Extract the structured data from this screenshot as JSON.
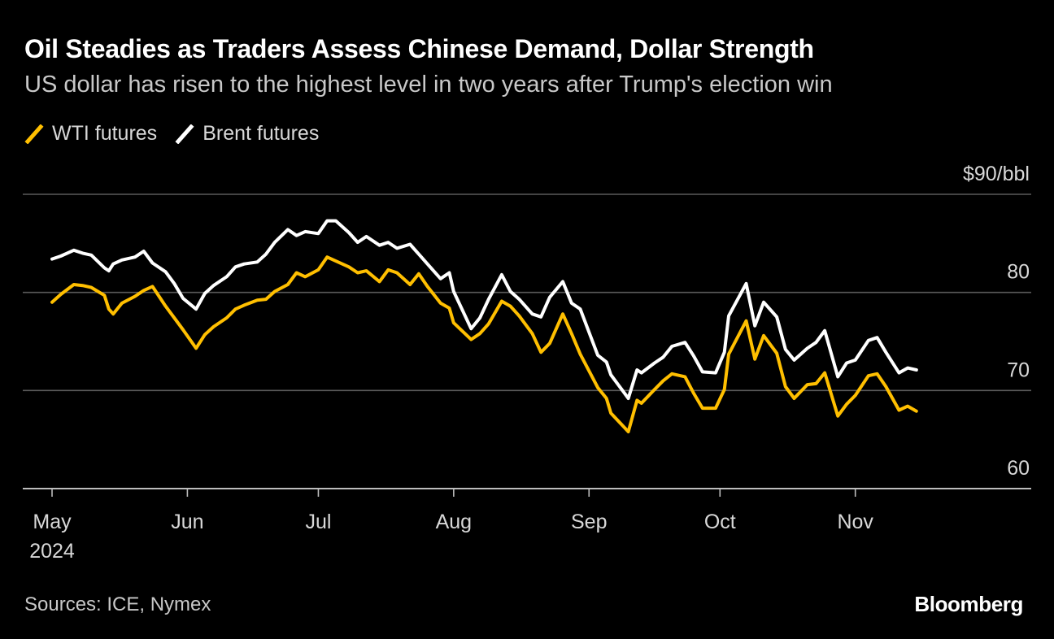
{
  "header": {
    "title": "Oil Steadies as Traders Assess Chinese Demand, Dollar Strength",
    "subtitle": "US dollar has risen to the highest level in two years after Trump's election win"
  },
  "footer": {
    "source": "Sources: ICE, Nymex",
    "brand": "Bloomberg"
  },
  "colors": {
    "background": "#000000",
    "wti": "#ffbf00",
    "brent": "#ffffff",
    "grid": "#5a5a5a"
  },
  "chart_data": {
    "type": "line",
    "title": "Oil Steadies as Traders Assess Chinese Demand, Dollar Strength",
    "subtitle": "US dollar has risen to the highest level in two years after Trump's election win",
    "ylim": [
      60,
      90
    ],
    "yticks": [
      60,
      70,
      80,
      90
    ],
    "ytick_labels": [
      "60",
      "70",
      "80",
      "$90/bbl"
    ],
    "xlim": [
      "2024-05-01",
      "2024-11-29"
    ],
    "xticks": [
      {
        "date": "2024-05-01",
        "label": "May",
        "sublabel": "2024"
      },
      {
        "date": "2024-06-01",
        "label": "Jun",
        "sublabel": ""
      },
      {
        "date": "2024-07-01",
        "label": "Jul",
        "sublabel": ""
      },
      {
        "date": "2024-08-01",
        "label": "Aug",
        "sublabel": ""
      },
      {
        "date": "2024-09-01",
        "label": "Sep",
        "sublabel": ""
      },
      {
        "date": "2024-10-01",
        "label": "Oct",
        "sublabel": ""
      },
      {
        "date": "2024-11-01",
        "label": "Nov",
        "sublabel": ""
      }
    ],
    "legend_position": "top-left",
    "grid": true,
    "series": [
      {
        "name": "WTI futures",
        "color": "#ffbf00",
        "points": [
          [
            "2024-05-01",
            79.0
          ],
          [
            "2024-05-03",
            79.8
          ],
          [
            "2024-05-06",
            80.8
          ],
          [
            "2024-05-08",
            80.7
          ],
          [
            "2024-05-10",
            80.5
          ],
          [
            "2024-05-13",
            79.7
          ],
          [
            "2024-05-14",
            78.3
          ],
          [
            "2024-05-15",
            77.8
          ],
          [
            "2024-05-17",
            78.9
          ],
          [
            "2024-05-20",
            79.6
          ],
          [
            "2024-05-22",
            80.2
          ],
          [
            "2024-05-24",
            80.6
          ],
          [
            "2024-05-27",
            78.6
          ],
          [
            "2024-05-29",
            77.4
          ],
          [
            "2024-05-31",
            76.2
          ],
          [
            "2024-06-03",
            74.3
          ],
          [
            "2024-06-05",
            75.7
          ],
          [
            "2024-06-07",
            76.5
          ],
          [
            "2024-06-10",
            77.4
          ],
          [
            "2024-06-12",
            78.3
          ],
          [
            "2024-06-14",
            78.7
          ],
          [
            "2024-06-17",
            79.2
          ],
          [
            "2024-06-19",
            79.3
          ],
          [
            "2024-06-21",
            80.1
          ],
          [
            "2024-06-24",
            80.8
          ],
          [
            "2024-06-26",
            82.0
          ],
          [
            "2024-06-28",
            81.6
          ],
          [
            "2024-07-01",
            82.3
          ],
          [
            "2024-07-03",
            83.6
          ],
          [
            "2024-07-05",
            83.2
          ],
          [
            "2024-07-08",
            82.6
          ],
          [
            "2024-07-10",
            82.0
          ],
          [
            "2024-07-12",
            82.2
          ],
          [
            "2024-07-15",
            81.1
          ],
          [
            "2024-07-17",
            82.3
          ],
          [
            "2024-07-19",
            82.0
          ],
          [
            "2024-07-22",
            80.8
          ],
          [
            "2024-07-24",
            81.9
          ],
          [
            "2024-07-26",
            80.6
          ],
          [
            "2024-07-29",
            78.9
          ],
          [
            "2024-07-31",
            78.4
          ],
          [
            "2024-08-01",
            76.9
          ],
          [
            "2024-08-05",
            75.2
          ],
          [
            "2024-08-07",
            75.8
          ],
          [
            "2024-08-09",
            76.8
          ],
          [
            "2024-08-12",
            79.1
          ],
          [
            "2024-08-14",
            78.6
          ],
          [
            "2024-08-16",
            77.6
          ],
          [
            "2024-08-19",
            75.8
          ],
          [
            "2024-08-21",
            73.9
          ],
          [
            "2024-08-23",
            74.8
          ],
          [
            "2024-08-26",
            77.8
          ],
          [
            "2024-08-28",
            75.8
          ],
          [
            "2024-08-30",
            73.7
          ],
          [
            "2024-09-03",
            70.3
          ],
          [
            "2024-09-05",
            69.2
          ],
          [
            "2024-09-06",
            67.7
          ],
          [
            "2024-09-10",
            65.8
          ],
          [
            "2024-09-12",
            69.0
          ],
          [
            "2024-09-13",
            68.7
          ],
          [
            "2024-09-16",
            70.1
          ],
          [
            "2024-09-18",
            71.0
          ],
          [
            "2024-09-20",
            71.7
          ],
          [
            "2024-09-23",
            71.4
          ],
          [
            "2024-09-25",
            69.7
          ],
          [
            "2024-09-27",
            68.2
          ],
          [
            "2024-09-30",
            68.2
          ],
          [
            "2024-10-02",
            70.1
          ],
          [
            "2024-10-03",
            73.7
          ],
          [
            "2024-10-07",
            77.1
          ],
          [
            "2024-10-09",
            73.2
          ],
          [
            "2024-10-11",
            75.6
          ],
          [
            "2024-10-14",
            73.8
          ],
          [
            "2024-10-16",
            70.4
          ],
          [
            "2024-10-18",
            69.2
          ],
          [
            "2024-10-21",
            70.6
          ],
          [
            "2024-10-23",
            70.7
          ],
          [
            "2024-10-25",
            71.8
          ],
          [
            "2024-10-28",
            67.4
          ],
          [
            "2024-10-30",
            68.6
          ],
          [
            "2024-11-01",
            69.5
          ],
          [
            "2024-11-04",
            71.5
          ],
          [
            "2024-11-06",
            71.7
          ],
          [
            "2024-11-08",
            70.4
          ],
          [
            "2024-11-11",
            68.0
          ],
          [
            "2024-11-13",
            68.4
          ],
          [
            "2024-11-15",
            67.9
          ]
        ]
      },
      {
        "name": "Brent futures",
        "color": "#ffffff",
        "points": [
          [
            "2024-05-01",
            83.4
          ],
          [
            "2024-05-03",
            83.7
          ],
          [
            "2024-05-06",
            84.3
          ],
          [
            "2024-05-08",
            84.0
          ],
          [
            "2024-05-10",
            83.8
          ],
          [
            "2024-05-13",
            82.5
          ],
          [
            "2024-05-14",
            82.2
          ],
          [
            "2024-05-15",
            82.9
          ],
          [
            "2024-05-17",
            83.3
          ],
          [
            "2024-05-20",
            83.6
          ],
          [
            "2024-05-22",
            84.2
          ],
          [
            "2024-05-24",
            83.0
          ],
          [
            "2024-05-27",
            82.1
          ],
          [
            "2024-05-29",
            80.9
          ],
          [
            "2024-05-31",
            79.4
          ],
          [
            "2024-06-03",
            78.3
          ],
          [
            "2024-06-05",
            79.9
          ],
          [
            "2024-06-07",
            80.7
          ],
          [
            "2024-06-10",
            81.6
          ],
          [
            "2024-06-12",
            82.6
          ],
          [
            "2024-06-14",
            82.9
          ],
          [
            "2024-06-17",
            83.1
          ],
          [
            "2024-06-19",
            83.9
          ],
          [
            "2024-06-21",
            85.1
          ],
          [
            "2024-06-24",
            86.4
          ],
          [
            "2024-06-26",
            85.8
          ],
          [
            "2024-06-28",
            86.2
          ],
          [
            "2024-07-01",
            86.0
          ],
          [
            "2024-07-03",
            87.3
          ],
          [
            "2024-07-05",
            87.3
          ],
          [
            "2024-07-08",
            86.1
          ],
          [
            "2024-07-10",
            85.1
          ],
          [
            "2024-07-12",
            85.7
          ],
          [
            "2024-07-15",
            84.8
          ],
          [
            "2024-07-17",
            85.1
          ],
          [
            "2024-07-19",
            84.5
          ],
          [
            "2024-07-22",
            84.9
          ],
          [
            "2024-07-24",
            83.9
          ],
          [
            "2024-07-26",
            82.9
          ],
          [
            "2024-07-29",
            81.4
          ],
          [
            "2024-07-31",
            82.0
          ],
          [
            "2024-08-01",
            80.1
          ],
          [
            "2024-08-05",
            76.3
          ],
          [
            "2024-08-07",
            77.4
          ],
          [
            "2024-08-09",
            79.3
          ],
          [
            "2024-08-12",
            81.8
          ],
          [
            "2024-08-14",
            80.1
          ],
          [
            "2024-08-16",
            79.3
          ],
          [
            "2024-08-19",
            77.8
          ],
          [
            "2024-08-21",
            77.5
          ],
          [
            "2024-08-23",
            79.5
          ],
          [
            "2024-08-26",
            81.1
          ],
          [
            "2024-08-28",
            78.9
          ],
          [
            "2024-08-30",
            78.3
          ],
          [
            "2024-09-03",
            73.6
          ],
          [
            "2024-09-05",
            72.9
          ],
          [
            "2024-09-06",
            71.6
          ],
          [
            "2024-09-10",
            69.2
          ],
          [
            "2024-09-12",
            72.1
          ],
          [
            "2024-09-13",
            71.8
          ],
          [
            "2024-09-16",
            72.8
          ],
          [
            "2024-09-18",
            73.4
          ],
          [
            "2024-09-20",
            74.5
          ],
          [
            "2024-09-23",
            74.9
          ],
          [
            "2024-09-25",
            73.5
          ],
          [
            "2024-09-27",
            71.9
          ],
          [
            "2024-09-30",
            71.8
          ],
          [
            "2024-10-02",
            73.9
          ],
          [
            "2024-10-03",
            77.6
          ],
          [
            "2024-10-07",
            80.9
          ],
          [
            "2024-10-09",
            76.6
          ],
          [
            "2024-10-11",
            79.0
          ],
          [
            "2024-10-14",
            77.5
          ],
          [
            "2024-10-16",
            74.2
          ],
          [
            "2024-10-18",
            73.1
          ],
          [
            "2024-10-21",
            74.3
          ],
          [
            "2024-10-23",
            74.9
          ],
          [
            "2024-10-25",
            76.1
          ],
          [
            "2024-10-28",
            71.4
          ],
          [
            "2024-10-30",
            72.8
          ],
          [
            "2024-11-01",
            73.1
          ],
          [
            "2024-11-04",
            75.1
          ],
          [
            "2024-11-06",
            75.4
          ],
          [
            "2024-11-08",
            73.9
          ],
          [
            "2024-11-11",
            71.8
          ],
          [
            "2024-11-13",
            72.3
          ],
          [
            "2024-11-15",
            72.1
          ]
        ]
      }
    ]
  }
}
